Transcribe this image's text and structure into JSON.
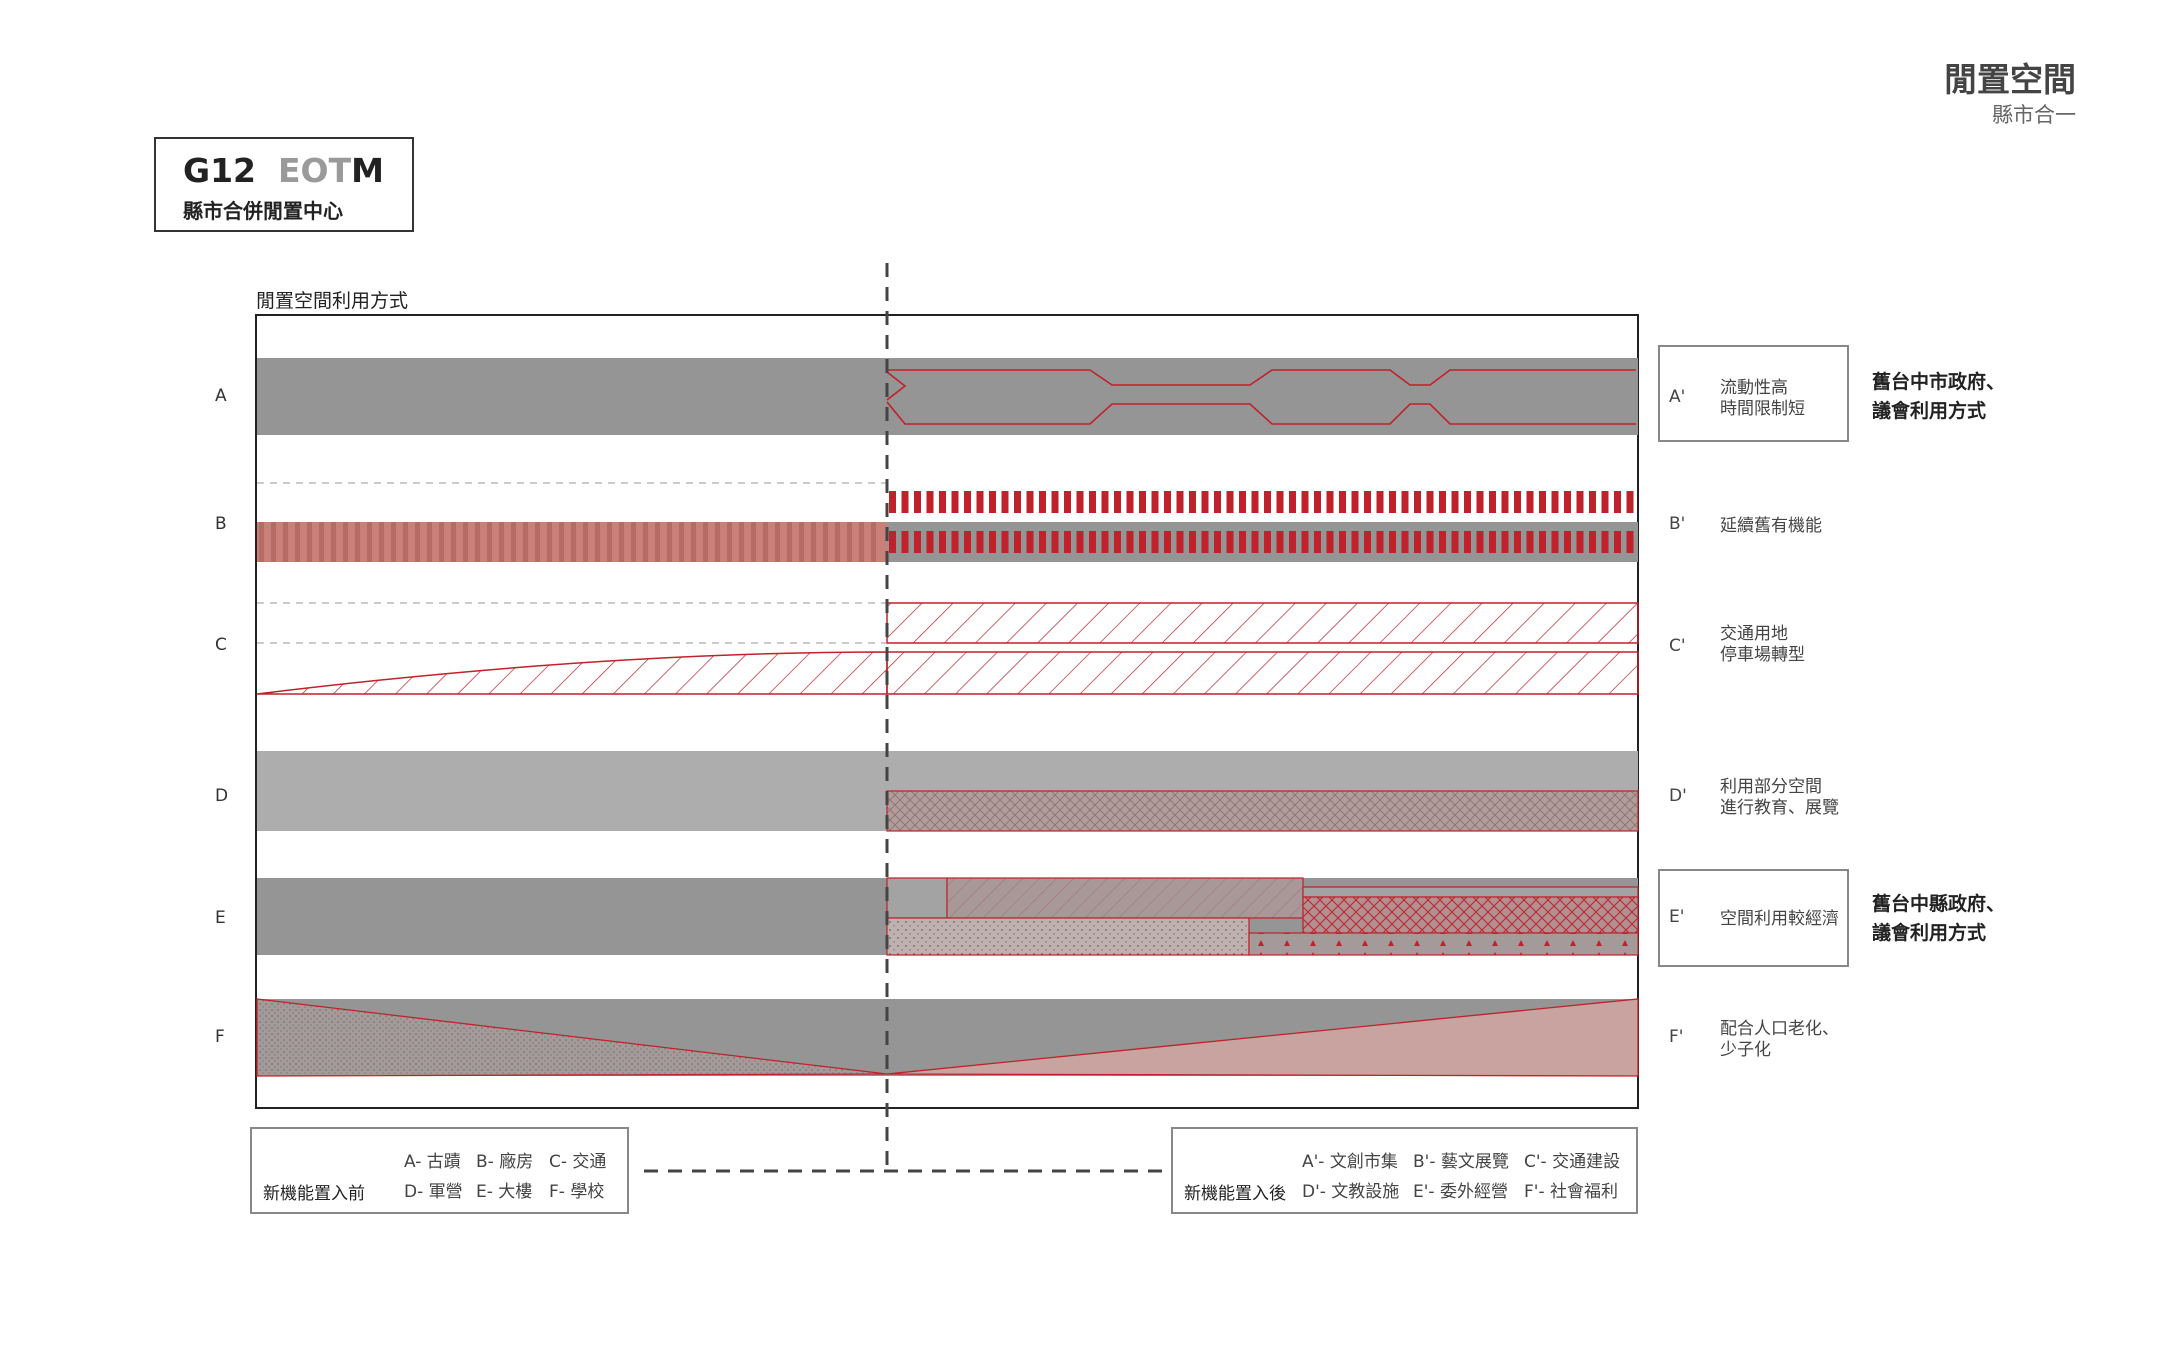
{
  "page": {
    "title": "閒置空間",
    "subtitle": "縣市合一"
  },
  "header": {
    "code_g": "G12",
    "code_eot": "EOT",
    "code_m": "M",
    "subtitle": "縣市合併閒置中心"
  },
  "chart": {
    "title": "閒置空間利用方式",
    "rows": [
      "A",
      "B",
      "C",
      "D",
      "E",
      "F"
    ]
  },
  "right_labels": [
    {
      "id": "A'",
      "desc": [
        "流動性高",
        "時間限制短"
      ]
    },
    {
      "id": "B'",
      "desc": [
        "延續舊有機能"
      ]
    },
    {
      "id": "C'",
      "desc": [
        "交通用地",
        "停車場轉型"
      ]
    },
    {
      "id": "D'",
      "desc": [
        "利用部分空間",
        "進行教育、展覽"
      ]
    },
    {
      "id": "E'",
      "desc": [
        "空間利用較經濟"
      ]
    },
    {
      "id": "F'",
      "desc": [
        "配合人口老化、",
        "少子化"
      ]
    }
  ],
  "gov_notes": {
    "city": [
      "舊台中市政府、",
      "議會利用方式"
    ],
    "county": [
      "舊台中縣政府、",
      "議會利用方式"
    ]
  },
  "legend_before": {
    "label": "新機能置入前",
    "items": [
      "A- 古蹟",
      "B- 廠房",
      "C- 交通",
      "D- 軍營",
      "E- 大樓",
      "F- 學校"
    ]
  },
  "legend_after": {
    "label": "新機能置入後",
    "items": [
      "A'- 文創市集",
      "B'- 藝文展覽",
      "C'- 交通建設",
      "D'- 文教設施",
      "E'- 委外經營",
      "F'- 社會福利"
    ]
  },
  "colors": {
    "gray_dark": "#959595",
    "gray_light": "#adadad",
    "red": "#c0212b",
    "salmon": "#c88078",
    "pink_fill": "#c9a3a0"
  }
}
